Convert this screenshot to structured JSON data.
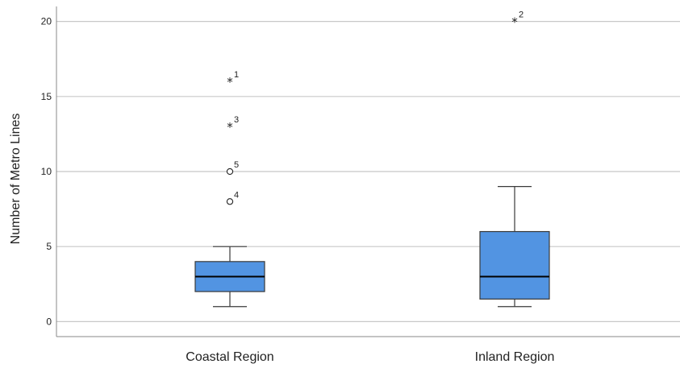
{
  "chart_data": {
    "type": "boxplot",
    "title": "",
    "xlabel": "",
    "ylabel": "Number of Metro Lines",
    "ylim": [
      -1,
      21
    ],
    "yticks": [
      0,
      5,
      10,
      15,
      20
    ],
    "grid": true,
    "categories": [
      "Coastal Region",
      "Inland Region"
    ],
    "boxes": [
      {
        "category": "Coastal Region",
        "min": 1,
        "q1": 2,
        "median": 3,
        "q3": 4,
        "max": 5,
        "outliers": [
          {
            "value": 16,
            "label": "1",
            "marker": "star"
          },
          {
            "value": 13,
            "label": "3",
            "marker": "star"
          },
          {
            "value": 10,
            "label": "5",
            "marker": "circle"
          },
          {
            "value": 8,
            "label": "4",
            "marker": "circle"
          }
        ]
      },
      {
        "category": "Inland Region",
        "min": 1,
        "q1": 1.5,
        "median": 3,
        "q3": 6,
        "max": 9,
        "outliers": [
          {
            "value": 20,
            "label": "2",
            "marker": "star"
          }
        ]
      }
    ],
    "colors": {
      "box_fill": "#5294E2",
      "box_stroke": "#3a3a3a",
      "median": "#000000",
      "grid": "#c8c8c8",
      "axis": "#888888"
    }
  }
}
